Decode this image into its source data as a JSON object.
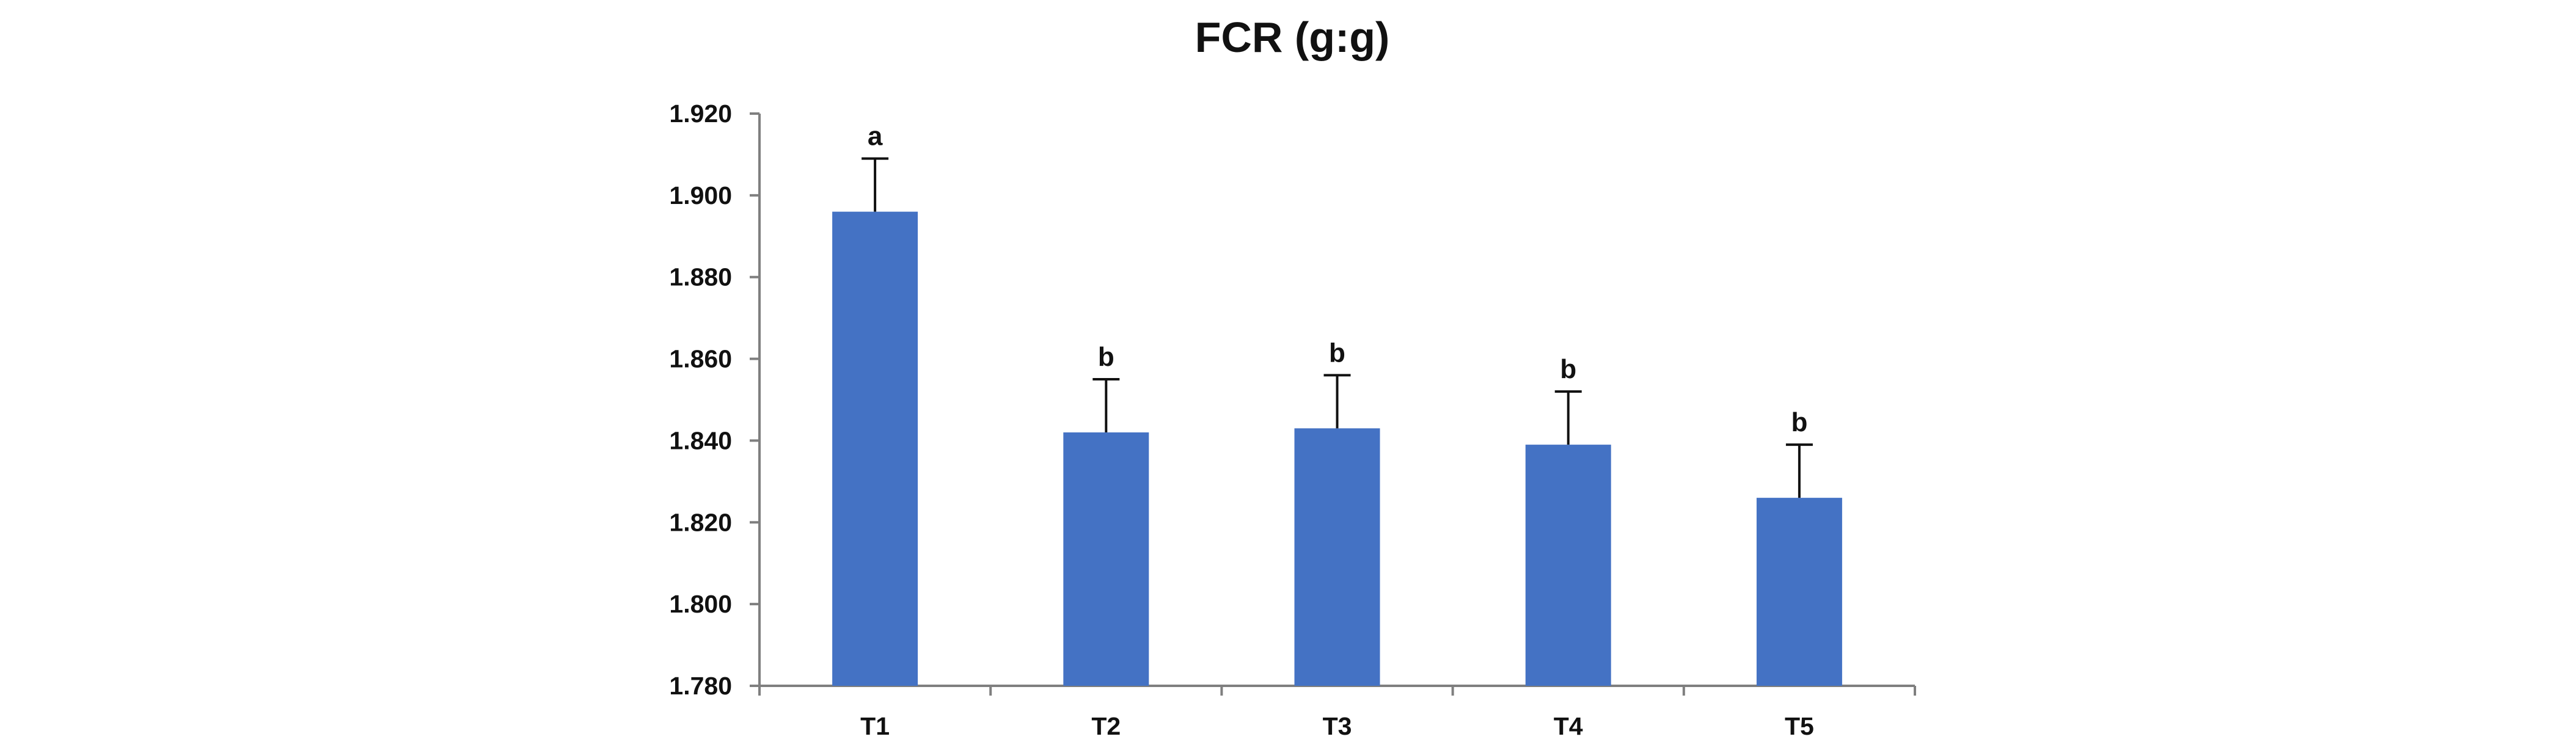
{
  "chart_data": {
    "type": "bar",
    "title": "FCR (g:g)",
    "xlabel": "",
    "ylabel": "",
    "categories": [
      "T1",
      "T2",
      "T3",
      "T4",
      "T5"
    ],
    "values": [
      1.896,
      1.842,
      1.843,
      1.839,
      1.826
    ],
    "error": [
      0.013,
      0.013,
      0.013,
      0.013,
      0.013
    ],
    "significance": [
      "a",
      "b",
      "b",
      "b",
      "b"
    ],
    "ylim": [
      1.78,
      1.92
    ],
    "yticks": [
      1.78,
      1.8,
      1.82,
      1.84,
      1.86,
      1.88,
      1.9,
      1.92
    ],
    "ytick_labels": [
      "1.780",
      "1.800",
      "1.820",
      "1.840",
      "1.860",
      "1.880",
      "1.900",
      "1.920"
    ],
    "grid": false,
    "legend": "none",
    "bar_color": "#4472C4"
  }
}
